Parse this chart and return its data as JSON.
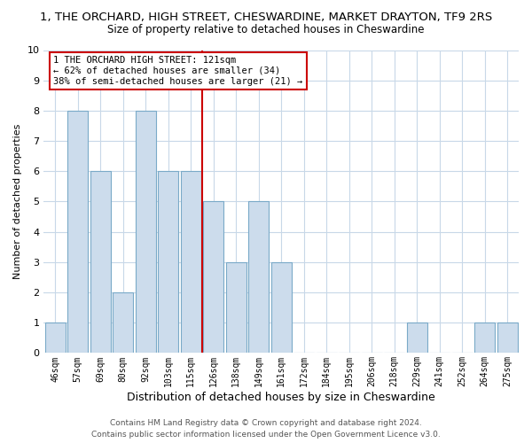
{
  "title": "1, THE ORCHARD, HIGH STREET, CHESWARDINE, MARKET DRAYTON, TF9 2RS",
  "subtitle": "Size of property relative to detached houses in Cheswardine",
  "xlabel": "Distribution of detached houses by size in Cheswardine",
  "ylabel": "Number of detached properties",
  "bar_labels": [
    "46sqm",
    "57sqm",
    "69sqm",
    "80sqm",
    "92sqm",
    "103sqm",
    "115sqm",
    "126sqm",
    "138sqm",
    "149sqm",
    "161sqm",
    "172sqm",
    "184sqm",
    "195sqm",
    "206sqm",
    "218sqm",
    "229sqm",
    "241sqm",
    "252sqm",
    "264sqm",
    "275sqm"
  ],
  "bar_values": [
    1,
    8,
    6,
    2,
    8,
    6,
    6,
    5,
    3,
    5,
    3,
    0,
    0,
    0,
    0,
    0,
    1,
    0,
    0,
    1,
    1
  ],
  "bar_color": "#ccdcec",
  "bar_edge_color": "#7aaac8",
  "vline_color": "#cc0000",
  "ylim": [
    0,
    10
  ],
  "yticks": [
    0,
    1,
    2,
    3,
    4,
    5,
    6,
    7,
    8,
    9,
    10
  ],
  "annotation_text": "1 THE ORCHARD HIGH STREET: 121sqm\n← 62% of detached houses are smaller (34)\n38% of semi-detached houses are larger (21) →",
  "annotation_box_color": "#ffffff",
  "annotation_box_edge": "#cc0000",
  "footer1": "Contains HM Land Registry data © Crown copyright and database right 2024.",
  "footer2": "Contains public sector information licensed under the Open Government Licence v3.0.",
  "background_color": "#ffffff",
  "grid_color": "#c8d8e8",
  "title_fontsize": 9,
  "subtitle_fontsize": 8.5
}
